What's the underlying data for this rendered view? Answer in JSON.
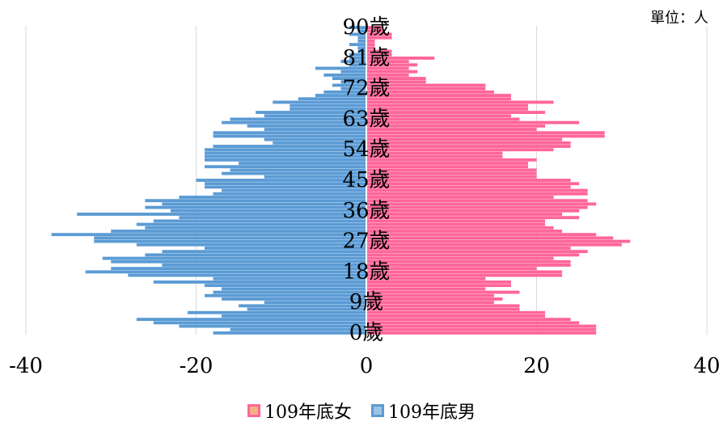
{
  "unit_label": "單位：人",
  "colors": {
    "female": "#ff6699",
    "male": "#5b9bd5",
    "grid": "#d9d9d9",
    "female_swatch_fill": "#f4b183",
    "male_swatch_fill": "#9dc3e6"
  },
  "chart_data": {
    "type": "bar",
    "orientation": "horizontal",
    "title": "",
    "xlabel": "",
    "ylabel": "",
    "xlim": [
      -40,
      40
    ],
    "x_ticks": [
      "-40",
      "-20",
      "0",
      "20",
      "40"
    ],
    "categories": [
      "0",
      "1",
      "2",
      "3",
      "4",
      "5",
      "6",
      "7",
      "8",
      "9",
      "10",
      "11",
      "12",
      "13",
      "14",
      "15",
      "16",
      "17",
      "18",
      "19",
      "20",
      "21",
      "22",
      "23",
      "24",
      "25",
      "26",
      "27",
      "28",
      "29",
      "30",
      "31",
      "32",
      "33",
      "34",
      "35",
      "36",
      "37",
      "38",
      "39",
      "40",
      "41",
      "42",
      "43",
      "44",
      "45",
      "46",
      "47",
      "48",
      "49",
      "50",
      "51",
      "52",
      "53",
      "54",
      "55",
      "56",
      "57",
      "58",
      "59",
      "60",
      "61",
      "62",
      "63",
      "64",
      "65",
      "66",
      "67",
      "68",
      "69",
      "70",
      "71",
      "72",
      "73",
      "74",
      "75",
      "76",
      "77",
      "78",
      "79",
      "80",
      "81",
      "82",
      "83",
      "84",
      "85",
      "86",
      "87",
      "88",
      "89",
      "90"
    ],
    "category_labels": [
      "0歲",
      "9歲",
      "18歲",
      "27歲",
      "36歲",
      "45歲",
      "54歲",
      "63歲",
      "72歲",
      "81歲",
      "90歲"
    ],
    "series": [
      {
        "name": "109年底女",
        "values": [
          27,
          27,
          27,
          25,
          24,
          21,
          21,
          18,
          18,
          15,
          16,
          15,
          18,
          14,
          17,
          17,
          14,
          23,
          23,
          20,
          24,
          24,
          22,
          25,
          26,
          24,
          30,
          31,
          29,
          27,
          23,
          22,
          21,
          21,
          25,
          23,
          25,
          26,
          27,
          26,
          22,
          26,
          26,
          24,
          25,
          24,
          20,
          20,
          20,
          19,
          19,
          20,
          16,
          16,
          22,
          24,
          24,
          23,
          28,
          28,
          20,
          21,
          25,
          18,
          17,
          21,
          19,
          19,
          22,
          17,
          17,
          15,
          14,
          14,
          7,
          7,
          5,
          6,
          5,
          6,
          5,
          8,
          3,
          3,
          1,
          1,
          1,
          3,
          3,
          2,
          2
        ]
      },
      {
        "name": "109年底男",
        "values": [
          -18,
          -16,
          -22,
          -25,
          -27,
          -17,
          -21,
          -14,
          -15,
          -12,
          -17,
          -19,
          -18,
          -17,
          -19,
          -25,
          -18,
          -28,
          -33,
          -30,
          -24,
          -30,
          -31,
          -26,
          -24,
          -19,
          -27,
          -32,
          -32,
          -37,
          -30,
          -26,
          -27,
          -25,
          -22,
          -34,
          -23,
          -26,
          -24,
          -26,
          -22,
          -18,
          -17,
          -19,
          -19,
          -20,
          -12,
          -17,
          -16,
          -19,
          -15,
          -19,
          -19,
          -19,
          -19,
          -18,
          -11,
          -12,
          -18,
          -18,
          -12,
          -14,
          -17,
          -16,
          -12,
          -13,
          -9,
          -9,
          -11,
          -8,
          -6,
          -5,
          -3,
          -4,
          -3,
          -4,
          -5,
          -3,
          -6,
          -2,
          -3,
          -2,
          -2,
          -1,
          -1,
          -2,
          -1,
          -1,
          -2,
          -1,
          -2
        ]
      }
    ],
    "legend": "bottom",
    "grid": "vertical"
  }
}
